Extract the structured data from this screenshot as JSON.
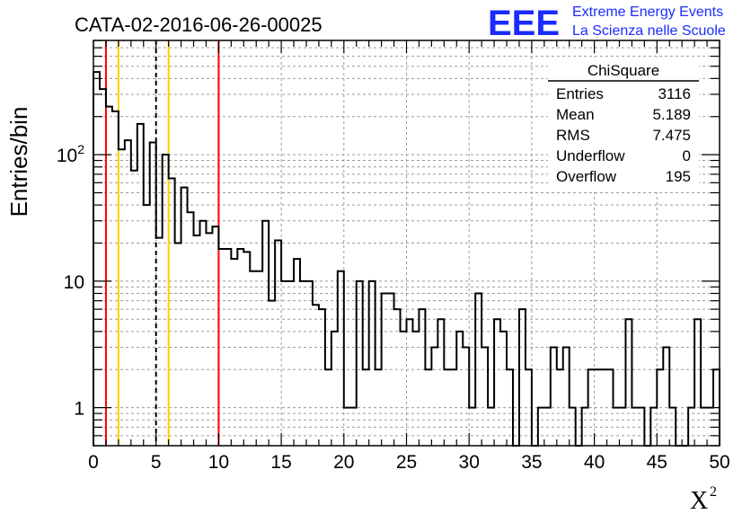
{
  "chart_data": {
    "type": "bar",
    "title": "CATA-02-2016-06-26-00025",
    "xlabel": "X",
    "xlabel_sup": "2",
    "ylabel": "Entries/bin",
    "xlim": [
      0,
      50
    ],
    "ylim": [
      0.5,
      800
    ],
    "yscale": "log",
    "grid": true,
    "bin_width": 0.5,
    "x_ticks": [
      0,
      5,
      10,
      15,
      20,
      25,
      30,
      35,
      40,
      45,
      50
    ],
    "y_ticks": [
      {
        "value": 1,
        "label": "1"
      },
      {
        "value": 10,
        "label": "10"
      },
      {
        "value": 100,
        "label": "10",
        "sup": "2"
      }
    ],
    "values": [
      450,
      330,
      240,
      220,
      110,
      130,
      75,
      175,
      40,
      125,
      22,
      100,
      65,
      20,
      55,
      35,
      23,
      30,
      24,
      27,
      18,
      18,
      15,
      18,
      17,
      12,
      12,
      30,
      7,
      21,
      10,
      10,
      15,
      10,
      10,
      6.5,
      6,
      2,
      4,
      12,
      1,
      1,
      10,
      2,
      10,
      2,
      8,
      8,
      6,
      4,
      5,
      4,
      6,
      2,
      3,
      5,
      2,
      2,
      4,
      3,
      1,
      8,
      3,
      1,
      5,
      4,
      2,
      0.1,
      6,
      2,
      0.1,
      1,
      1,
      3,
      2,
      3,
      1,
      0.1,
      1,
      2,
      2,
      2,
      2,
      1,
      1,
      5,
      1,
      1,
      0.1,
      1,
      2,
      3,
      1,
      0.1,
      0.1,
      1,
      5,
      1,
      1,
      2
    ],
    "vertical_lines": [
      {
        "x": 1,
        "color": "#ff0000",
        "style": "solid"
      },
      {
        "x": 2,
        "color": "#ffcc00",
        "style": "solid"
      },
      {
        "x": 5,
        "color": "#000000",
        "style": "dashed"
      },
      {
        "x": 6,
        "color": "#ffcc00",
        "style": "solid"
      },
      {
        "x": 10,
        "color": "#ff0000",
        "style": "solid"
      }
    ],
    "stats_box": {
      "title": "ChiSquare",
      "rows": [
        {
          "label": "Entries",
          "value": "3116"
        },
        {
          "label": "Mean",
          "value": "5.189"
        },
        {
          "label": "RMS",
          "value": "7.475"
        },
        {
          "label": "Underflow",
          "value": "0"
        },
        {
          "label": "Overflow",
          "value": "195"
        }
      ]
    },
    "logo": {
      "mark": "EEE",
      "line1": "Extreme Energy Events",
      "line2": "La Scienza nelle Scuole",
      "color": "#1a2cff"
    }
  }
}
